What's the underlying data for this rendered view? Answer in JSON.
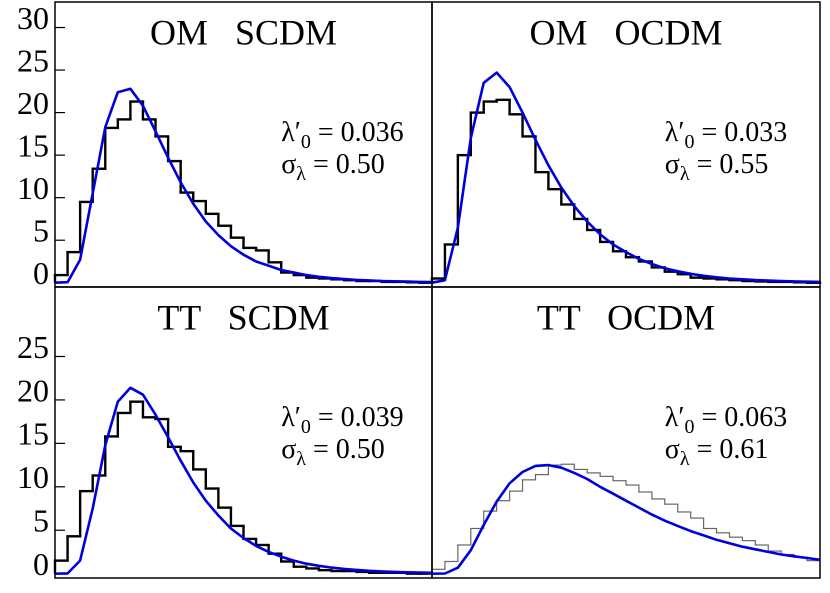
{
  "chart_data": [
    {
      "type": "histogram",
      "title": "OM   SCDM",
      "annotation": {
        "lambda": "λ′",
        "lambda_sub": "0",
        "lambda_value": " = 0.036",
        "sigma": "σ",
        "sigma_sub": "λ",
        "sigma_value": " = 0.50"
      },
      "xlim": [
        0,
        0.15
      ],
      "ylim": [
        -0.5,
        33
      ],
      "yticks": [
        0,
        5,
        10,
        15,
        20,
        25,
        30
      ],
      "bins": [
        0,
        0.005,
        0.01,
        0.015,
        0.02,
        0.025,
        0.03,
        0.035,
        0.04,
        0.045,
        0.05,
        0.055,
        0.06,
        0.065,
        0.07,
        0.075,
        0.08,
        0.085,
        0.09,
        0.095,
        0.1,
        0.105,
        0.11,
        0.115,
        0.12,
        0.125,
        0.13,
        0.135,
        0.14,
        0.145,
        0.15
      ],
      "counts": [
        0.9,
        3.6,
        9.5,
        13.4,
        18.2,
        19.2,
        21.3,
        19.2,
        17.2,
        14.3,
        10.6,
        9.6,
        8.1,
        6.7,
        5.3,
        4.1,
        3.8,
        2.4,
        1.2,
        0.9,
        0.6,
        0.5,
        0.4,
        0.3,
        0.2,
        0.2,
        0.1,
        0.1,
        0.05,
        0
      ],
      "color": "#000000",
      "curve": {
        "color": "#0000dd",
        "x": [
          0,
          0.005,
          0.01,
          0.015,
          0.02,
          0.025,
          0.03,
          0.035,
          0.04,
          0.045,
          0.05,
          0.055,
          0.06,
          0.065,
          0.07,
          0.075,
          0.08,
          0.085,
          0.09,
          0.095,
          0.1,
          0.105,
          0.11,
          0.115,
          0.12,
          0.125,
          0.13,
          0.135,
          0.14,
          0.145,
          0.15
        ],
        "values": [
          0,
          0.06,
          2.7,
          10.5,
          18.3,
          22.4,
          22.8,
          20.8,
          17.8,
          14.7,
          11.8,
          9.3,
          7.2,
          5.6,
          4.3,
          3.3,
          2.5,
          2.0,
          1.5,
          1.2,
          0.9,
          0.7,
          0.55,
          0.43,
          0.34,
          0.27,
          0.21,
          0.17,
          0.13,
          0.1,
          0.08
        ]
      }
    },
    {
      "type": "histogram",
      "title": "OM   OCDM",
      "annotation": {
        "lambda": "λ′",
        "lambda_sub": "0",
        "lambda_value": " = 0.033",
        "sigma": "σ",
        "sigma_sub": "λ",
        "sigma_value": " = 0.55"
      },
      "xlim": [
        0,
        0.15
      ],
      "ylim": [
        -0.5,
        33
      ],
      "bins": [
        0,
        0.005,
        0.01,
        0.015,
        0.02,
        0.025,
        0.03,
        0.035,
        0.04,
        0.045,
        0.05,
        0.055,
        0.06,
        0.065,
        0.07,
        0.075,
        0.08,
        0.085,
        0.09,
        0.095,
        0.1,
        0.105,
        0.11,
        0.115,
        0.12,
        0.125,
        0.13,
        0.135,
        0.14,
        0.145,
        0.15
      ],
      "counts": [
        0.5,
        4.5,
        15,
        20,
        21.3,
        21.5,
        19.8,
        17.2,
        13,
        11,
        9.2,
        7.5,
        6.2,
        4.8,
        3.7,
        3,
        2.5,
        1.8,
        1.3,
        1,
        0.6,
        0.5,
        0.4,
        0.3,
        0.2,
        0.15,
        0.1,
        0.1,
        0.05,
        0
      ],
      "color": "#000000",
      "curve": {
        "color": "#0000dd",
        "x": [
          0,
          0.005,
          0.01,
          0.015,
          0.02,
          0.025,
          0.03,
          0.035,
          0.04,
          0.045,
          0.05,
          0.055,
          0.06,
          0.065,
          0.07,
          0.075,
          0.08,
          0.085,
          0.09,
          0.095,
          0.1,
          0.105,
          0.11,
          0.115,
          0.12,
          0.125,
          0.13,
          0.135,
          0.14,
          0.145,
          0.15
        ],
        "values": [
          0,
          0.3,
          6.5,
          17,
          23.5,
          24.7,
          23,
          20,
          16.8,
          13.8,
          11.2,
          9,
          7.2,
          5.7,
          4.5,
          3.6,
          2.8,
          2.2,
          1.7,
          1.35,
          1.05,
          0.82,
          0.64,
          0.5,
          0.4,
          0.31,
          0.25,
          0.2,
          0.16,
          0.12,
          0.1
        ]
      }
    },
    {
      "type": "histogram",
      "title": "TT   SCDM",
      "annotation": {
        "lambda": "λ′",
        "lambda_sub": "0",
        "lambda_value": " = 0.039",
        "sigma": "σ",
        "sigma_sub": "λ",
        "sigma_value": " = 0.50"
      },
      "xlim": [
        0,
        0.15
      ],
      "ylim": [
        -0.5,
        33
      ],
      "yticks": [
        0,
        5,
        10,
        15,
        20,
        25
      ],
      "bins": [
        0,
        0.005,
        0.01,
        0.015,
        0.02,
        0.025,
        0.03,
        0.035,
        0.04,
        0.045,
        0.05,
        0.055,
        0.06,
        0.065,
        0.07,
        0.075,
        0.08,
        0.085,
        0.09,
        0.095,
        0.1,
        0.105,
        0.11,
        0.115,
        0.12,
        0.125,
        0.13,
        0.135,
        0.14,
        0.145,
        0.15
      ],
      "counts": [
        1.5,
        4.3,
        9.5,
        11.3,
        15.8,
        18.5,
        19.8,
        18,
        17.8,
        14.6,
        14.1,
        12,
        9.8,
        7.6,
        5.5,
        4,
        3.3,
        2.3,
        1.4,
        0.8,
        0.6,
        0.4,
        0.3,
        0.3,
        0.2,
        0.1,
        0.1,
        0.1,
        0,
        0
      ],
      "color": "#000000",
      "curve": {
        "color": "#0000dd",
        "x": [
          0,
          0.005,
          0.01,
          0.015,
          0.02,
          0.025,
          0.03,
          0.035,
          0.04,
          0.045,
          0.05,
          0.055,
          0.06,
          0.065,
          0.07,
          0.075,
          0.08,
          0.085,
          0.09,
          0.095,
          0.1,
          0.105,
          0.11,
          0.115,
          0.12,
          0.125,
          0.13,
          0.135,
          0.14,
          0.145,
          0.15
        ],
        "values": [
          0,
          0.03,
          1.5,
          7.5,
          14.8,
          19.8,
          21.4,
          20.6,
          18.3,
          15.7,
          13,
          10.5,
          8.4,
          6.7,
          5.2,
          4.1,
          3.2,
          2.5,
          1.95,
          1.5,
          1.15,
          0.9,
          0.7,
          0.55,
          0.43,
          0.33,
          0.26,
          0.2,
          0.16,
          0.13,
          0.1
        ]
      }
    },
    {
      "type": "histogram",
      "title": "TT   OCDM",
      "annotation": {
        "lambda": "λ′",
        "lambda_sub": "0",
        "lambda_value": " = 0.063",
        "sigma": "σ",
        "sigma_sub": "λ",
        "sigma_value": " = 0.61"
      },
      "xlim": [
        0,
        0.15
      ],
      "ylim": [
        -0.5,
        33
      ],
      "bins": [
        0,
        0.005,
        0.01,
        0.015,
        0.02,
        0.025,
        0.03,
        0.035,
        0.04,
        0.045,
        0.05,
        0.055,
        0.06,
        0.065,
        0.07,
        0.075,
        0.08,
        0.085,
        0.09,
        0.095,
        0.1,
        0.105,
        0.11,
        0.115,
        0.12,
        0.125,
        0.13,
        0.135,
        0.14,
        0.145,
        0.15
      ],
      "counts": [
        0.5,
        1.4,
        3.3,
        5.2,
        7.2,
        8.4,
        9.5,
        10.8,
        11.4,
        12.5,
        12.6,
        12,
        11.6,
        11.2,
        10.7,
        10.2,
        9.4,
        8.6,
        8,
        7.1,
        6.4,
        5.2,
        4.7,
        4.2,
        3.8,
        3.3,
        2.6,
        2.2,
        1.9,
        1.5
      ],
      "color": "#666666",
      "curve": {
        "color": "#0000dd",
        "x": [
          0,
          0.005,
          0.01,
          0.015,
          0.02,
          0.025,
          0.03,
          0.035,
          0.04,
          0.045,
          0.05,
          0.055,
          0.06,
          0.065,
          0.07,
          0.075,
          0.08,
          0.085,
          0.09,
          0.095,
          0.1,
          0.105,
          0.11,
          0.115,
          0.12,
          0.125,
          0.13,
          0.135,
          0.14,
          0.145,
          0.15
        ],
        "values": [
          0,
          0.02,
          0.69,
          2.7,
          5.6,
          8.3,
          10.4,
          11.7,
          12.4,
          12.5,
          12.2,
          11.6,
          10.9,
          10.0,
          9.2,
          8.4,
          7.6,
          6.8,
          6.1,
          5.5,
          4.9,
          4.4,
          3.9,
          3.5,
          3.1,
          2.8,
          2.5,
          2.2,
          2.0,
          1.8,
          1.6
        ]
      }
    }
  ]
}
